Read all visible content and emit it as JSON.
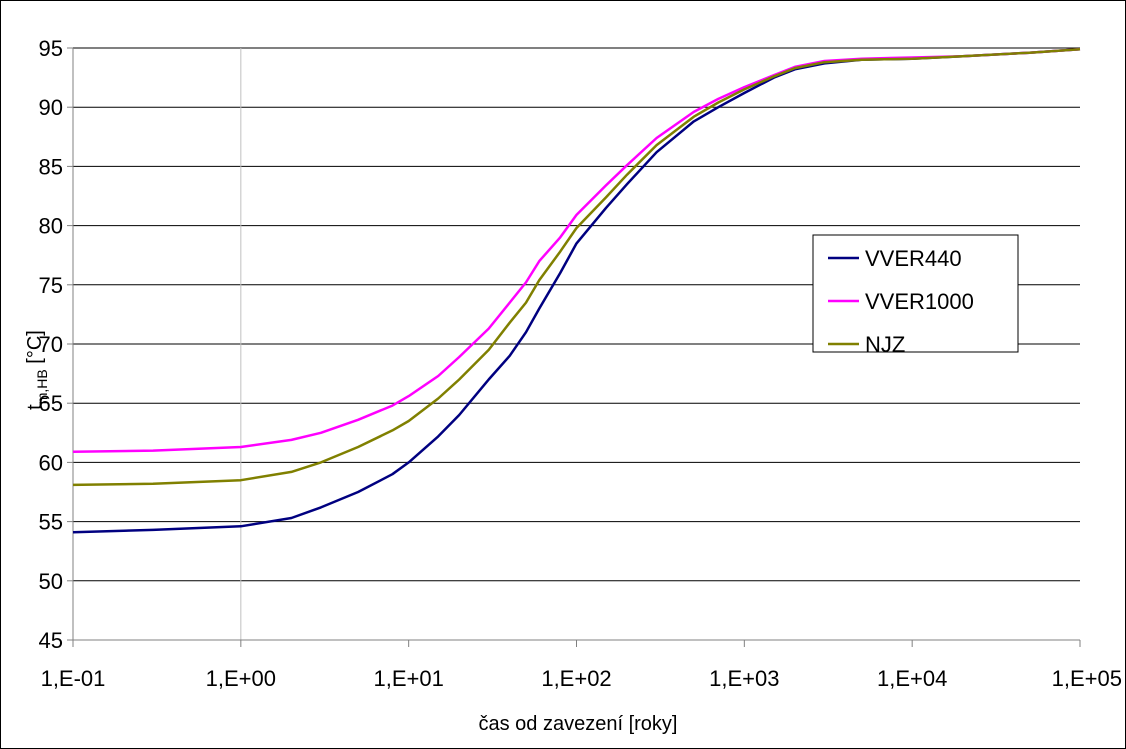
{
  "chart_data": {
    "type": "line",
    "title": "",
    "xlabel": "čas od zavezení [roky]",
    "ylabel_main": "t",
    "ylabel_sub": "m,HB",
    "ylabel_unit": " [°C]",
    "x_scale": "log",
    "xlim": [
      0.1,
      100000
    ],
    "ylim": [
      45,
      95
    ],
    "x_ticks": [
      0.1,
      1,
      10,
      100,
      1000,
      10000,
      100000
    ],
    "x_tick_labels": [
      "1,E-01",
      "1,E+00",
      "1,E+01",
      "1,E+02",
      "1,E+03",
      "1,E+04",
      "1,E+05"
    ],
    "y_ticks": [
      45,
      50,
      55,
      60,
      65,
      70,
      75,
      80,
      85,
      90,
      95
    ],
    "y_tick_labels": [
      "45",
      "50",
      "55",
      "60",
      "65",
      "70",
      "75",
      "80",
      "85",
      "90",
      "95"
    ],
    "grid": {
      "horizontal": true,
      "vertical": false
    },
    "legend": "right",
    "series": [
      {
        "name": "VVER440",
        "color": "#000080",
        "x": [
          0.1,
          0.3,
          1,
          2,
          3,
          5,
          8,
          10,
          15,
          20,
          30,
          40,
          50,
          60,
          80,
          100,
          150,
          200,
          300,
          500,
          700,
          1000,
          1500,
          2000,
          3000,
          5000,
          10000,
          20000,
          50000,
          100000
        ],
        "y": [
          54.1,
          54.3,
          54.6,
          55.3,
          56.2,
          57.5,
          59.0,
          60.0,
          62.2,
          64.0,
          67.0,
          69.0,
          71.0,
          73.0,
          76.0,
          78.5,
          81.5,
          83.5,
          86.2,
          88.8,
          90.0,
          91.2,
          92.5,
          93.2,
          93.7,
          94.0,
          94.1,
          94.3,
          94.6,
          94.9
        ]
      },
      {
        "name": "VVER1000",
        "color": "#ff00ff",
        "x": [
          0.1,
          0.3,
          1,
          2,
          3,
          5,
          8,
          10,
          15,
          20,
          30,
          40,
          50,
          60,
          80,
          100,
          150,
          200,
          300,
          500,
          700,
          1000,
          1500,
          2000,
          3000,
          5000,
          10000,
          20000,
          50000,
          100000
        ],
        "y": [
          60.9,
          61.0,
          61.3,
          61.9,
          62.5,
          63.6,
          64.8,
          65.6,
          67.3,
          68.9,
          71.3,
          73.5,
          75.2,
          77.0,
          79.0,
          80.9,
          83.4,
          85.1,
          87.4,
          89.6,
          90.7,
          91.7,
          92.7,
          93.4,
          93.9,
          94.1,
          94.2,
          94.3,
          94.6,
          94.9
        ]
      },
      {
        "name": "NJZ",
        "color": "#808000",
        "x": [
          0.1,
          0.3,
          1,
          2,
          3,
          5,
          8,
          10,
          15,
          20,
          30,
          40,
          50,
          60,
          80,
          100,
          150,
          200,
          300,
          500,
          700,
          1000,
          1500,
          2000,
          3000,
          5000,
          10000,
          20000,
          50000,
          100000
        ],
        "y": [
          58.1,
          58.2,
          58.5,
          59.2,
          60.0,
          61.3,
          62.7,
          63.5,
          65.4,
          67.0,
          69.5,
          71.8,
          73.5,
          75.4,
          77.8,
          79.8,
          82.4,
          84.3,
          86.8,
          89.2,
          90.4,
          91.5,
          92.6,
          93.3,
          93.8,
          94.0,
          94.1,
          94.3,
          94.6,
          94.9
        ]
      }
    ]
  }
}
